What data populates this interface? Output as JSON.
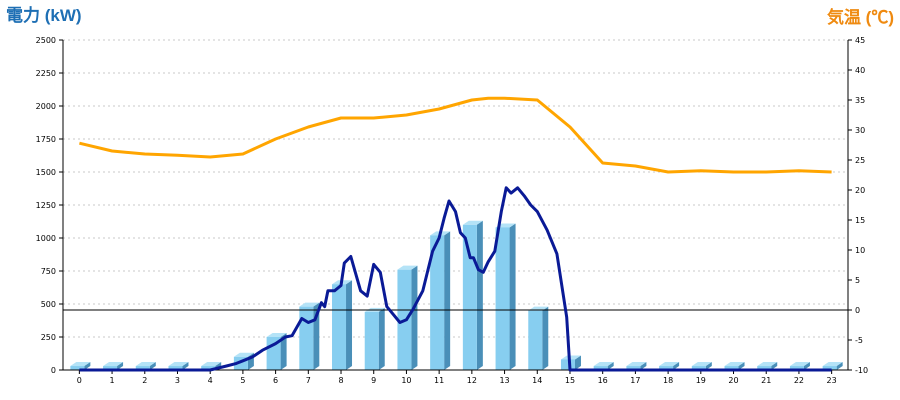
{
  "chart_data": {
    "type": "bar+line",
    "left_axis_title": "電力 (kW)",
    "right_axis_title": "気温 (℃)",
    "left_axis_ticks": [
      "0",
      "250",
      "500",
      "750",
      "1000",
      "1250",
      "1500",
      "1750",
      "2000",
      "2250",
      "2500"
    ],
    "right_axis_ticks": [
      "-10",
      "-5",
      "0",
      "5",
      "10",
      "15",
      "20",
      "25",
      "30",
      "35",
      "40",
      "45"
    ],
    "ylim_left": [
      0,
      2500
    ],
    "ylim_right": [
      -10,
      45
    ],
    "grid": true,
    "categories": [
      "0",
      "1",
      "2",
      "3",
      "4",
      "5",
      "6",
      "7",
      "8",
      "9",
      "10",
      "11",
      "12",
      "13",
      "14",
      "15",
      "16",
      "17",
      "18",
      "19",
      "20",
      "21",
      "22",
      "23"
    ],
    "bar_values": [
      30,
      30,
      30,
      30,
      30,
      100,
      250,
      480,
      650,
      440,
      760,
      1020,
      1100,
      1080,
      450,
      80,
      30,
      30,
      30,
      30,
      30,
      30,
      30,
      30
    ],
    "power_line": {
      "x": [
        0,
        1,
        2,
        3,
        4,
        4.5,
        4.8,
        5,
        5.3,
        5.6,
        6,
        6.3,
        6.5,
        6.8,
        7,
        7.2,
        7.4,
        7.5,
        7.6,
        7.8,
        8,
        8.1,
        8.3,
        8.6,
        8.8,
        9,
        9.2,
        9.4,
        9.6,
        9.8,
        10,
        10.2,
        10.5,
        10.8,
        11,
        11.15,
        11.3,
        11.5,
        11.65,
        11.8,
        11.95,
        12.05,
        12.2,
        12.35,
        12.5,
        12.7,
        12.9,
        13.05,
        13.2,
        13.4,
        13.6,
        13.8,
        14,
        14.3,
        14.6,
        14.9,
        15,
        15.2,
        16,
        17,
        18,
        19,
        20,
        21,
        22,
        23
      ],
      "y": [
        0,
        0,
        0,
        0,
        0,
        30,
        50,
        70,
        100,
        150,
        200,
        250,
        260,
        390,
        360,
        380,
        510,
        480,
        600,
        600,
        640,
        810,
        860,
        600,
        560,
        800,
        740,
        480,
        420,
        360,
        380,
        460,
        600,
        900,
        1000,
        1150,
        1280,
        1200,
        1040,
        1000,
        850,
        850,
        760,
        740,
        820,
        900,
        1200,
        1380,
        1340,
        1380,
        1320,
        1250,
        1200,
        1060,
        880,
        400,
        0,
        0,
        0,
        0,
        0,
        0,
        0,
        0,
        0,
        0
      ]
    },
    "temperature_line": {
      "x": [
        0,
        1,
        2,
        3,
        4,
        5,
        6,
        7,
        8,
        9,
        10,
        11,
        12,
        12.5,
        13,
        14,
        15,
        16,
        17,
        18,
        19,
        20,
        21,
        22,
        23
      ],
      "y": [
        27.8,
        26.5,
        26,
        25.8,
        25.5,
        26,
        28.5,
        30.5,
        32,
        32,
        32.5,
        33.5,
        35,
        35.3,
        35.3,
        35,
        30.5,
        24.5,
        24,
        23,
        23.2,
        23,
        23,
        23.2,
        23
      ]
    }
  },
  "colors": {
    "left_title": "#1e6fb4",
    "right_title": "#ef8a10",
    "bar_front": "#87cef0",
    "bar_side": "#4a8fb8",
    "bar_top": "#b4e3f7",
    "power_line": "#0a1a96",
    "temp_line": "#ffa500"
  }
}
